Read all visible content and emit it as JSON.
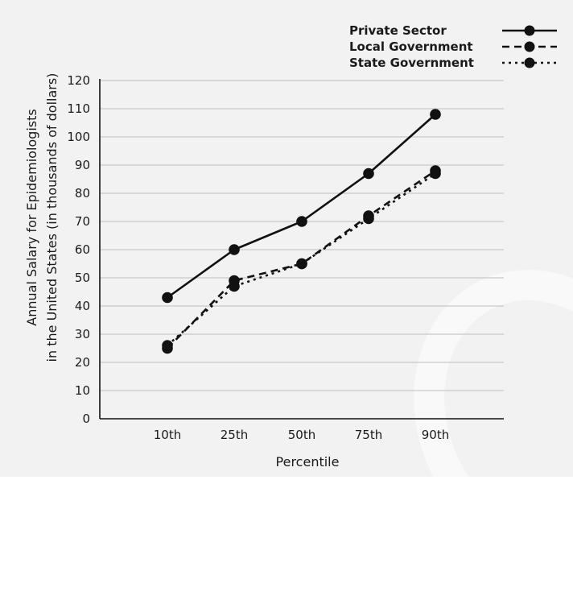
{
  "chart_data": {
    "type": "line",
    "xlabel": "Percentile",
    "ylabel_line1": "Annual Salary for Epidemiologists",
    "ylabel_line2": "in the United States (in thousands of dollars)",
    "categories": [
      "10th",
      "25th",
      "50th",
      "75th",
      "90th"
    ],
    "ylim": [
      0,
      120
    ],
    "yticks": [
      0,
      10,
      20,
      30,
      40,
      50,
      60,
      70,
      80,
      90,
      100,
      110,
      120
    ],
    "grid": true,
    "legend_placement": "top-right",
    "series": [
      {
        "name": "Private Sector",
        "values": [
          43,
          60,
          70,
          87,
          108
        ],
        "style": "solid"
      },
      {
        "name": "Local Government",
        "values": [
          25,
          49,
          55,
          72,
          88
        ],
        "style": "dashed"
      },
      {
        "name": "State Government",
        "values": [
          26,
          47,
          55,
          71,
          87
        ],
        "style": "dotted"
      }
    ],
    "colors": {
      "line": "#111111",
      "grid": "#c9c9c9",
      "background": "#f2f2f2"
    }
  }
}
